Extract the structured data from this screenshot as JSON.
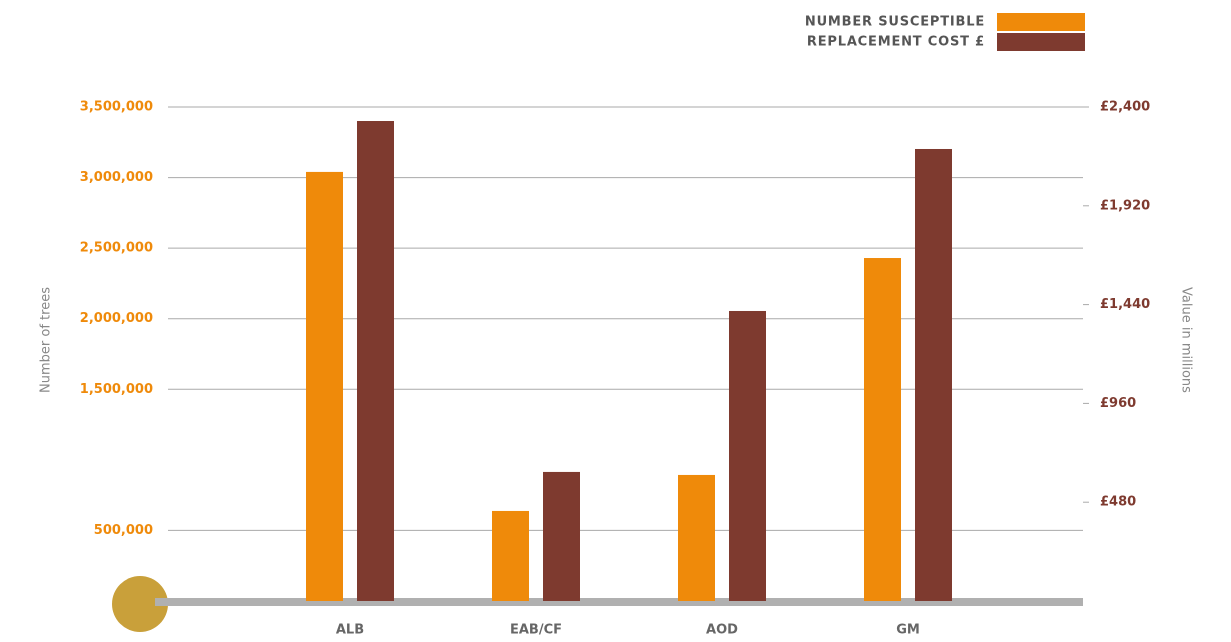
{
  "chart_data": {
    "type": "bar",
    "categories": [
      "ALB",
      "EAB/CF",
      "AOD",
      "GM"
    ],
    "series": [
      {
        "name": "NUMBER SUSCEPTIBLE",
        "color": "#ef8a0a",
        "values": [
          3040000,
          638000,
          893000,
          2430000
        ]
      },
      {
        "name": "REPLACEMENT COST £",
        "color": "#7e3a2f",
        "axis": "y2",
        "values": [
          2332,
          627,
          1409,
          2196
        ]
      }
    ],
    "y_label": "Number of trees",
    "y2_label": "Value in millions",
    "ylim": [
      0,
      3500000
    ],
    "yticks": [
      {
        "value": 500000,
        "label": "500,000"
      },
      {
        "value": 1500000,
        "label": "1,500,000"
      },
      {
        "value": 2000000,
        "label": "2,000,000"
      },
      {
        "value": 2500000,
        "label": "2,500,000"
      },
      {
        "value": 3000000,
        "label": "3,000,000"
      },
      {
        "value": 3500000,
        "label": "3,500,000"
      }
    ],
    "y2lim": [
      0,
      2400
    ],
    "y2ticks": [
      {
        "value": 480,
        "label": "£480"
      },
      {
        "value": 960,
        "label": "£960"
      },
      {
        "value": 1440,
        "label": "£1,440"
      },
      {
        "value": 1920,
        "label": "£1,920"
      },
      {
        "value": 2400,
        "label": "£2,400"
      }
    ],
    "grid": true,
    "legend": "top-right"
  }
}
